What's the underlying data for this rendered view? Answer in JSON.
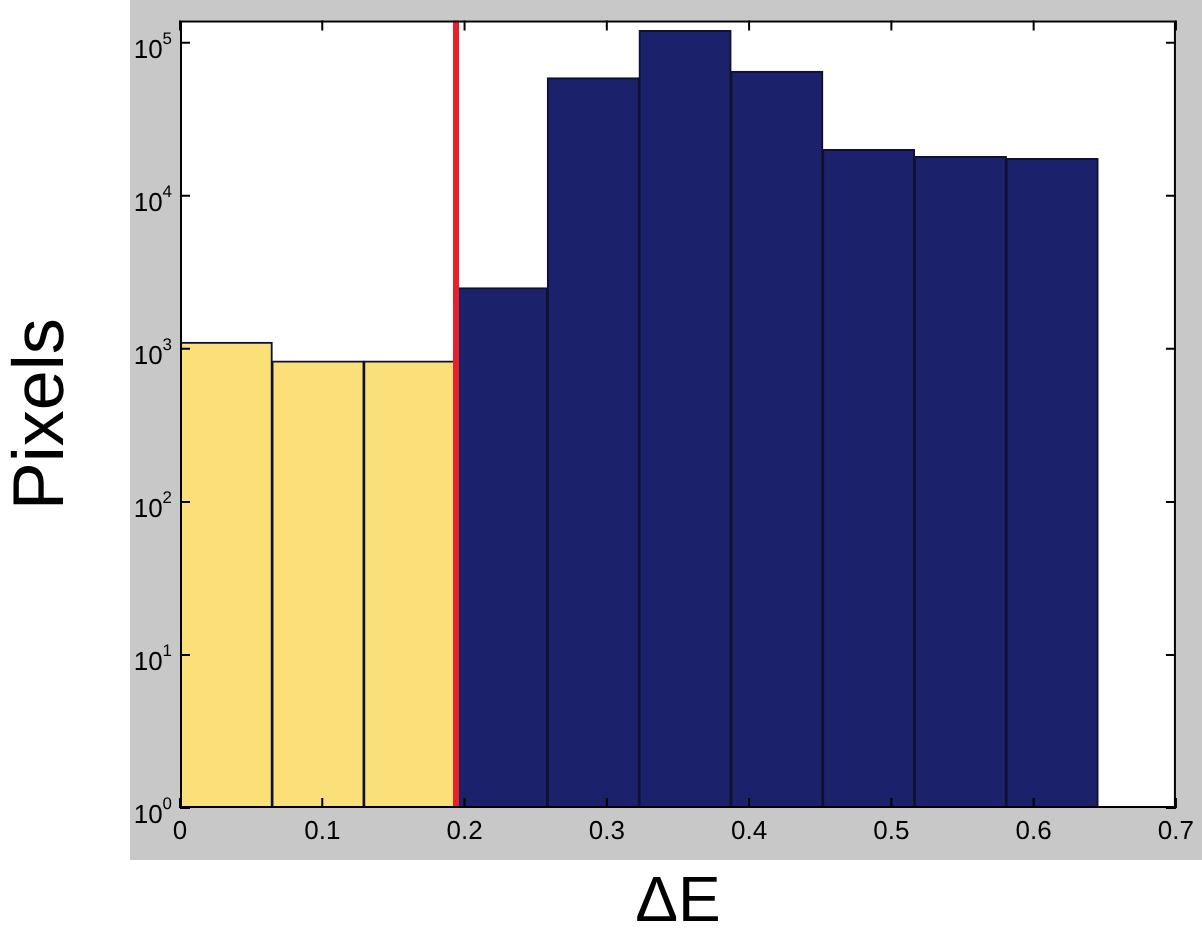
{
  "chart_data": {
    "type": "histogram",
    "xlabel": "ΔE",
    "ylabel": "Pixels",
    "bins": [
      0,
      0.065,
      0.129,
      0.194,
      0.258,
      0.323,
      0.387,
      0.452,
      0.516,
      0.581,
      0.645
    ],
    "values": [
      1100,
      830,
      830,
      2500,
      59000,
      120000,
      65000,
      20000,
      18000,
      17500
    ],
    "colors": [
      "#fbe07a",
      "#fbe07a",
      "#fbe07a",
      "#1b216a",
      "#1b216a",
      "#1b216a",
      "#1b216a",
      "#1b216a",
      "#1b216a",
      "#1b216a"
    ],
    "log": "y",
    "xlim": [
      0,
      0.7
    ],
    "xticks": [
      0,
      0.1,
      0.2,
      0.3,
      0.4,
      0.5,
      0.6,
      0.7
    ],
    "ylim": [
      1,
      140000
    ],
    "yticks": [
      {
        "value": 1,
        "label": "10$^{0}$"
      },
      {
        "value": 10,
        "label": "10$^{1}$"
      },
      {
        "value": 100,
        "label": "10$^{2}$"
      },
      {
        "value": 1000,
        "label": "10$^{3}$"
      },
      {
        "value": 10000,
        "label": "10$^{4}$"
      },
      {
        "value": 100000,
        "label": "10$^{5}$"
      }
    ],
    "ref_lines": [
      {
        "axis": "x",
        "value": 0.194,
        "color": "#e8202a"
      }
    ],
    "grid": false,
    "legend": false
  }
}
